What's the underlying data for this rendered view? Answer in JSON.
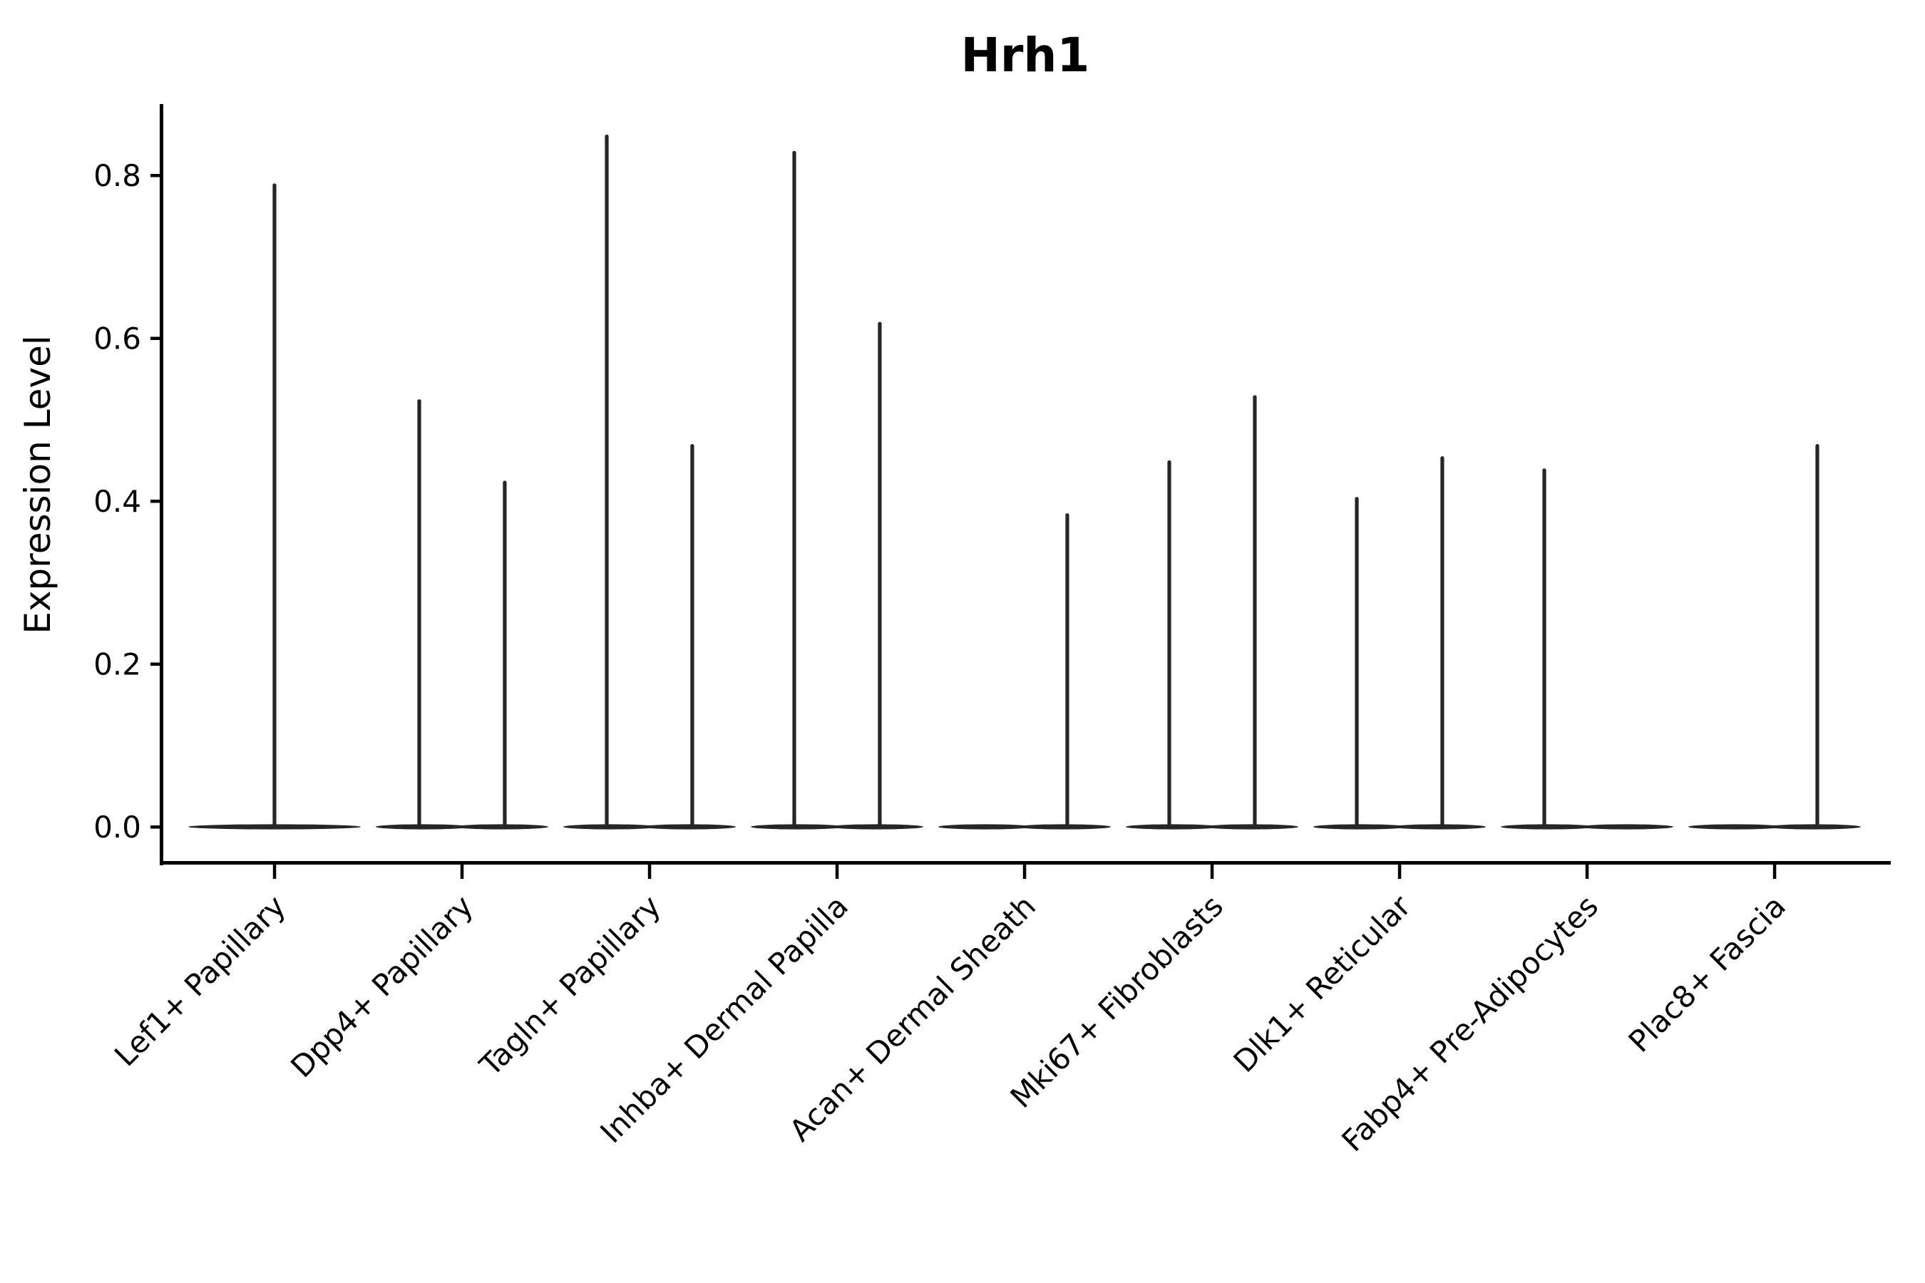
{
  "chart_data": {
    "type": "violin",
    "title": "Hrh1",
    "ylabel": "Expression Level",
    "xlabel": "",
    "grid": false,
    "legend_position": "none",
    "yticks": [
      0.0,
      0.2,
      0.4,
      0.6,
      0.8
    ],
    "ylim": [
      -0.044,
      0.887
    ],
    "colors": {
      "violin": "#262626",
      "axis": "#000000",
      "text": "#000000"
    },
    "categories": [
      "Lef1+ Papillary",
      "Dpp4+ Papillary",
      "Tagln+ Papillary",
      "Inhba+ Dermal Papilla",
      "Acan+ Dermal Sheath",
      "Mki67+ Fibroblasts",
      "Dlk1+ Reticular",
      "Fabp4+ Pre-Adipocytes",
      "Plac8+ Fascia"
    ],
    "violins": [
      {
        "category": "Lef1+ Papillary",
        "bases": [
          {
            "center": 0.0,
            "halfwidth": 0.46
          }
        ],
        "spikes": [
          {
            "x": 0.0,
            "max": 0.79
          }
        ]
      },
      {
        "category": "Dpp4+ Papillary",
        "bases": [
          {
            "center": -0.21,
            "halfwidth": 0.25
          },
          {
            "center": 0.21,
            "halfwidth": 0.25
          }
        ],
        "spikes": [
          {
            "x": -0.228,
            "max": 0.525
          },
          {
            "x": 0.228,
            "max": 0.425
          }
        ]
      },
      {
        "category": "Tagln+ Papillary",
        "bases": [
          {
            "center": -0.21,
            "halfwidth": 0.25
          },
          {
            "center": 0.21,
            "halfwidth": 0.25
          }
        ],
        "spikes": [
          {
            "x": -0.228,
            "max": 0.85
          },
          {
            "x": 0.228,
            "max": 0.47
          }
        ]
      },
      {
        "category": "Inhba+ Dermal Papilla",
        "bases": [
          {
            "center": -0.21,
            "halfwidth": 0.25
          },
          {
            "center": 0.21,
            "halfwidth": 0.25
          }
        ],
        "spikes": [
          {
            "x": -0.228,
            "max": 0.83
          },
          {
            "x": 0.228,
            "max": 0.62
          }
        ]
      },
      {
        "category": "Acan+ Dermal Sheath",
        "bases": [
          {
            "center": -0.21,
            "halfwidth": 0.25
          },
          {
            "center": 0.21,
            "halfwidth": 0.25
          }
        ],
        "spikes": [
          {
            "x": 0.228,
            "max": 0.385
          }
        ]
      },
      {
        "category": "Mki67+ Fibroblasts",
        "bases": [
          {
            "center": -0.21,
            "halfwidth": 0.25
          },
          {
            "center": 0.21,
            "halfwidth": 0.25
          }
        ],
        "spikes": [
          {
            "x": -0.228,
            "max": 0.45
          },
          {
            "x": 0.228,
            "max": 0.53
          }
        ]
      },
      {
        "category": "Dlk1+ Reticular",
        "bases": [
          {
            "center": -0.21,
            "halfwidth": 0.25
          },
          {
            "center": 0.21,
            "halfwidth": 0.25
          }
        ],
        "spikes": [
          {
            "x": -0.228,
            "max": 0.405
          },
          {
            "x": 0.228,
            "max": 0.455
          }
        ]
      },
      {
        "category": "Fabp4+ Pre-Adipocytes",
        "bases": [
          {
            "center": -0.21,
            "halfwidth": 0.25
          },
          {
            "center": 0.21,
            "halfwidth": 0.25
          }
        ],
        "spikes": [
          {
            "x": -0.228,
            "max": 0.44
          }
        ]
      },
      {
        "category": "Plac8+ Fascia",
        "bases": [
          {
            "center": -0.21,
            "halfwidth": 0.25
          },
          {
            "center": 0.21,
            "halfwidth": 0.25
          }
        ],
        "spikes": [
          {
            "x": 0.228,
            "max": 0.47
          }
        ]
      }
    ]
  }
}
